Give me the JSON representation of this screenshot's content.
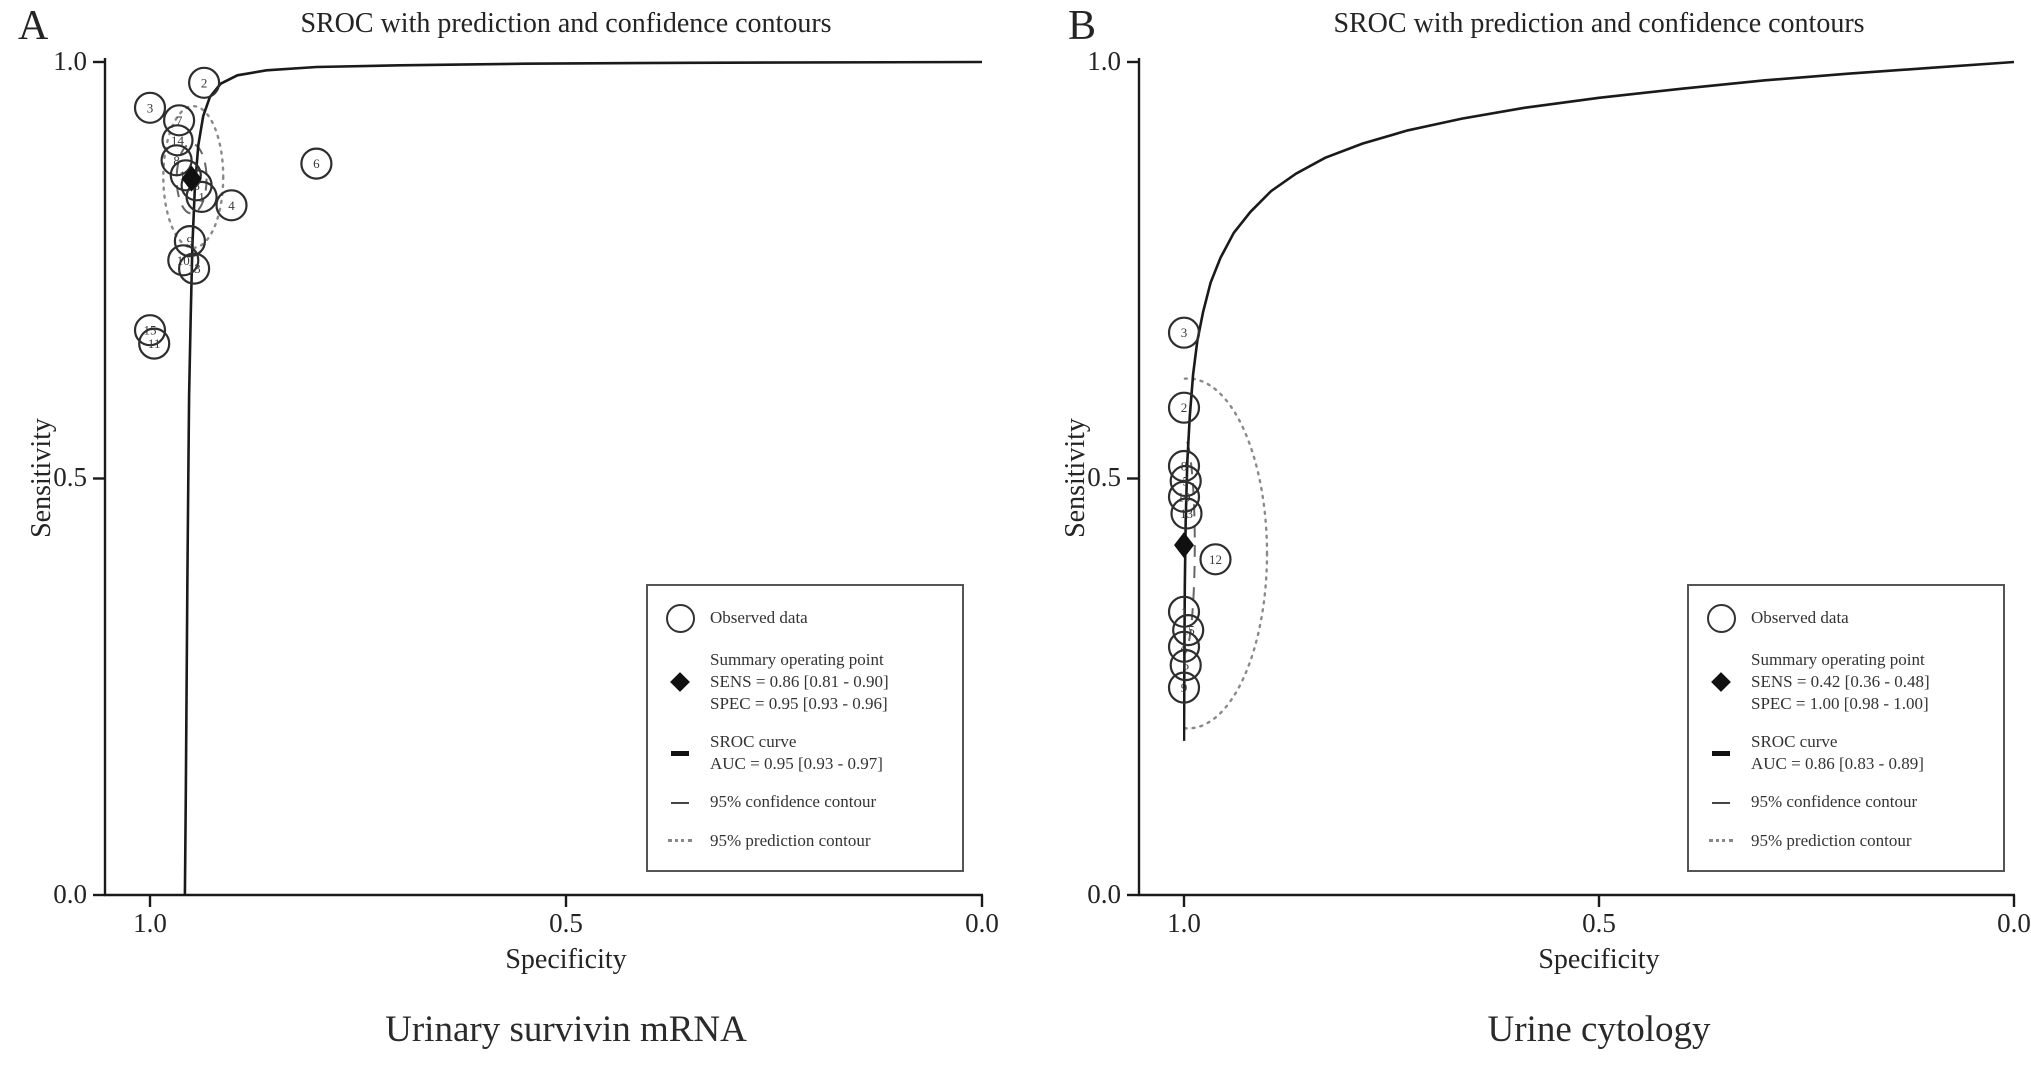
{
  "figure": {
    "background": "#ffffff",
    "text_color": "#242424",
    "curve_color": "#1a1a1a",
    "confidence_contour_color": "#666666",
    "prediction_contour_color": "#8a8a8a"
  },
  "chart_data": [
    {
      "type": "scatter",
      "panel": "A",
      "title": "SROC with prediction and confidence contours",
      "xlabel": "Specificity",
      "ylabel": "Sensitivity",
      "caption": "Urinary survivin mRNA",
      "x_axis": {
        "label": "Specificity",
        "ticks": [
          1.0,
          0.5,
          0.0
        ],
        "tick_labels": [
          "1.0",
          "0.5",
          "0.0"
        ],
        "range": [
          1.0,
          0.0
        ],
        "reversed": true
      },
      "y_axis": {
        "label": "Sensitivity",
        "ticks": [
          1.0,
          0.5,
          0.0
        ],
        "tick_labels": [
          "1.0",
          "0.5",
          "0.0"
        ],
        "range": [
          0.0,
          1.0
        ]
      },
      "observed_points": [
        {
          "study": "2",
          "specificity": 0.935,
          "sensitivity": 0.975
        },
        {
          "study": "3",
          "specificity": 1.0,
          "sensitivity": 0.945
        },
        {
          "study": "7",
          "specificity": 0.965,
          "sensitivity": 0.93
        },
        {
          "study": "14",
          "specificity": 0.967,
          "sensitivity": 0.906
        },
        {
          "study": "8",
          "specificity": 0.968,
          "sensitivity": 0.882
        },
        {
          "study": "12",
          "specificity": 0.957,
          "sensitivity": 0.864
        },
        {
          "study": "5",
          "specificity": 0.944,
          "sensitivity": 0.852
        },
        {
          "study": "1",
          "specificity": 0.938,
          "sensitivity": 0.838
        },
        {
          "study": "4",
          "specificity": 0.902,
          "sensitivity": 0.828
        },
        {
          "study": "6",
          "specificity": 0.8,
          "sensitivity": 0.878
        },
        {
          "study": "9",
          "specificity": 0.952,
          "sensitivity": 0.785
        },
        {
          "study": "10",
          "specificity": 0.96,
          "sensitivity": 0.762
        },
        {
          "study": "13",
          "specificity": 0.947,
          "sensitivity": 0.752
        },
        {
          "study": "15",
          "specificity": 1.0,
          "sensitivity": 0.678
        },
        {
          "study": "11",
          "specificity": 0.995,
          "sensitivity": 0.662
        }
      ],
      "summary_point": {
        "sensitivity": 0.86,
        "sens_ci": [
          0.81,
          0.9
        ],
        "specificity": 0.95,
        "spec_ci": [
          0.93,
          0.96
        ]
      },
      "auc": 0.95,
      "auc_ci": [
        0.93,
        0.97
      ],
      "sroc_curve": [
        [
          0.958,
          0.0
        ],
        [
          0.957,
          0.12
        ],
        [
          0.956,
          0.25
        ],
        [
          0.955,
          0.38
        ],
        [
          0.954,
          0.5
        ],
        [
          0.953,
          0.6
        ],
        [
          0.951,
          0.7
        ],
        [
          0.949,
          0.78
        ],
        [
          0.946,
          0.85
        ],
        [
          0.942,
          0.9
        ],
        [
          0.936,
          0.935
        ],
        [
          0.928,
          0.958
        ],
        [
          0.915,
          0.974
        ],
        [
          0.895,
          0.984
        ],
        [
          0.86,
          0.99
        ],
        [
          0.8,
          0.994
        ],
        [
          0.7,
          0.996
        ],
        [
          0.55,
          0.998
        ],
        [
          0.35,
          0.999
        ],
        [
          0.0,
          1.0
        ]
      ],
      "confidence_contour": {
        "cx": 0.95,
        "cy": 0.86,
        "rx": 0.018,
        "ry": 0.042
      },
      "prediction_contour": {
        "cx": 0.948,
        "cy": 0.862,
        "rx": 0.036,
        "ry": 0.085
      },
      "legend": {
        "observed": "Observed data",
        "summary_title": "Summary operating point",
        "sens": "SENS = 0.86 [0.81 - 0.90]",
        "spec": "SPEC = 0.95 [0.93 - 0.96]",
        "sroc_title": "SROC curve",
        "auc": "AUC = 0.95 [0.93 - 0.97]",
        "confidence": "95%  confidence contour",
        "prediction": "95%  prediction contour"
      }
    },
    {
      "type": "scatter",
      "panel": "B",
      "title": "SROC with prediction and confidence contours",
      "xlabel": "Specificity",
      "ylabel": "Sensitivity",
      "caption": "Urine cytology",
      "x_axis": {
        "label": "Specificity",
        "ticks": [
          1.0,
          0.5,
          0.0
        ],
        "tick_labels": [
          "1.0",
          "0.5",
          "0.0"
        ],
        "range": [
          1.0,
          0.0
        ],
        "reversed": true
      },
      "y_axis": {
        "label": "Sensitivity",
        "ticks": [
          1.0,
          0.5,
          0.0
        ],
        "tick_labels": [
          "1.0",
          "0.5",
          "0.0"
        ],
        "range": [
          0.0,
          1.0
        ]
      },
      "observed_points": [
        {
          "study": "3",
          "specificity": 1.0,
          "sensitivity": 0.675
        },
        {
          "study": "2",
          "specificity": 1.0,
          "sensitivity": 0.585
        },
        {
          "study": "8",
          "specificity": 1.0,
          "sensitivity": 0.515
        },
        {
          "study": "5",
          "specificity": 0.998,
          "sensitivity": 0.497
        },
        {
          "study": "10",
          "specificity": 1.0,
          "sensitivity": 0.478
        },
        {
          "study": "13",
          "specificity": 0.997,
          "sensitivity": 0.458
        },
        {
          "study": "12",
          "specificity": 0.962,
          "sensitivity": 0.403
        },
        {
          "study": "1",
          "specificity": 1.0,
          "sensitivity": 0.34
        },
        {
          "study": "15",
          "specificity": 0.995,
          "sensitivity": 0.318
        },
        {
          "study": "4",
          "specificity": 1.0,
          "sensitivity": 0.298
        },
        {
          "study": "6",
          "specificity": 0.998,
          "sensitivity": 0.276
        },
        {
          "study": "9",
          "specificity": 1.0,
          "sensitivity": 0.249
        }
      ],
      "summary_point": {
        "sensitivity": 0.42,
        "sens_ci": [
          0.36,
          0.48
        ],
        "specificity": 1.0,
        "spec_ci": [
          0.98,
          1.0
        ]
      },
      "auc": 0.86,
      "auc_ci": [
        0.83,
        0.89
      ],
      "sroc_curve": [
        [
          1.0,
          0.185
        ],
        [
          0.9995,
          0.29
        ],
        [
          0.999,
          0.37
        ],
        [
          0.998,
          0.45
        ],
        [
          0.996,
          0.52
        ],
        [
          0.993,
          0.575
        ],
        [
          0.989,
          0.625
        ],
        [
          0.984,
          0.665
        ],
        [
          0.977,
          0.7
        ],
        [
          0.968,
          0.735
        ],
        [
          0.956,
          0.765
        ],
        [
          0.94,
          0.795
        ],
        [
          0.92,
          0.82
        ],
        [
          0.895,
          0.845
        ],
        [
          0.865,
          0.866
        ],
        [
          0.83,
          0.885
        ],
        [
          0.785,
          0.902
        ],
        [
          0.73,
          0.918
        ],
        [
          0.665,
          0.932
        ],
        [
          0.59,
          0.945
        ],
        [
          0.5,
          0.957
        ],
        [
          0.4,
          0.968
        ],
        [
          0.3,
          0.978
        ],
        [
          0.2,
          0.986
        ],
        [
          0.1,
          0.993
        ],
        [
          0.0,
          1.0
        ]
      ],
      "confidence_contour": {
        "cx": 1.0,
        "cy": 0.42,
        "rx": 0.013,
        "ry": 0.13
      },
      "prediction_contour": {
        "cx": 0.995,
        "cy": 0.41,
        "rx": 0.095,
        "ry": 0.21
      },
      "legend": {
        "observed": "Observed data",
        "summary_title": "Summary operating point",
        "sens": "SENS = 0.42 [0.36 - 0.48]",
        "spec": "SPEC = 1.00 [0.98 - 1.00]",
        "sroc_title": "SROC curve",
        "auc": "AUC = 0.86 [0.83 - 0.89]",
        "confidence": "95%  confidence contour",
        "prediction": "95%  prediction contour"
      }
    }
  ]
}
